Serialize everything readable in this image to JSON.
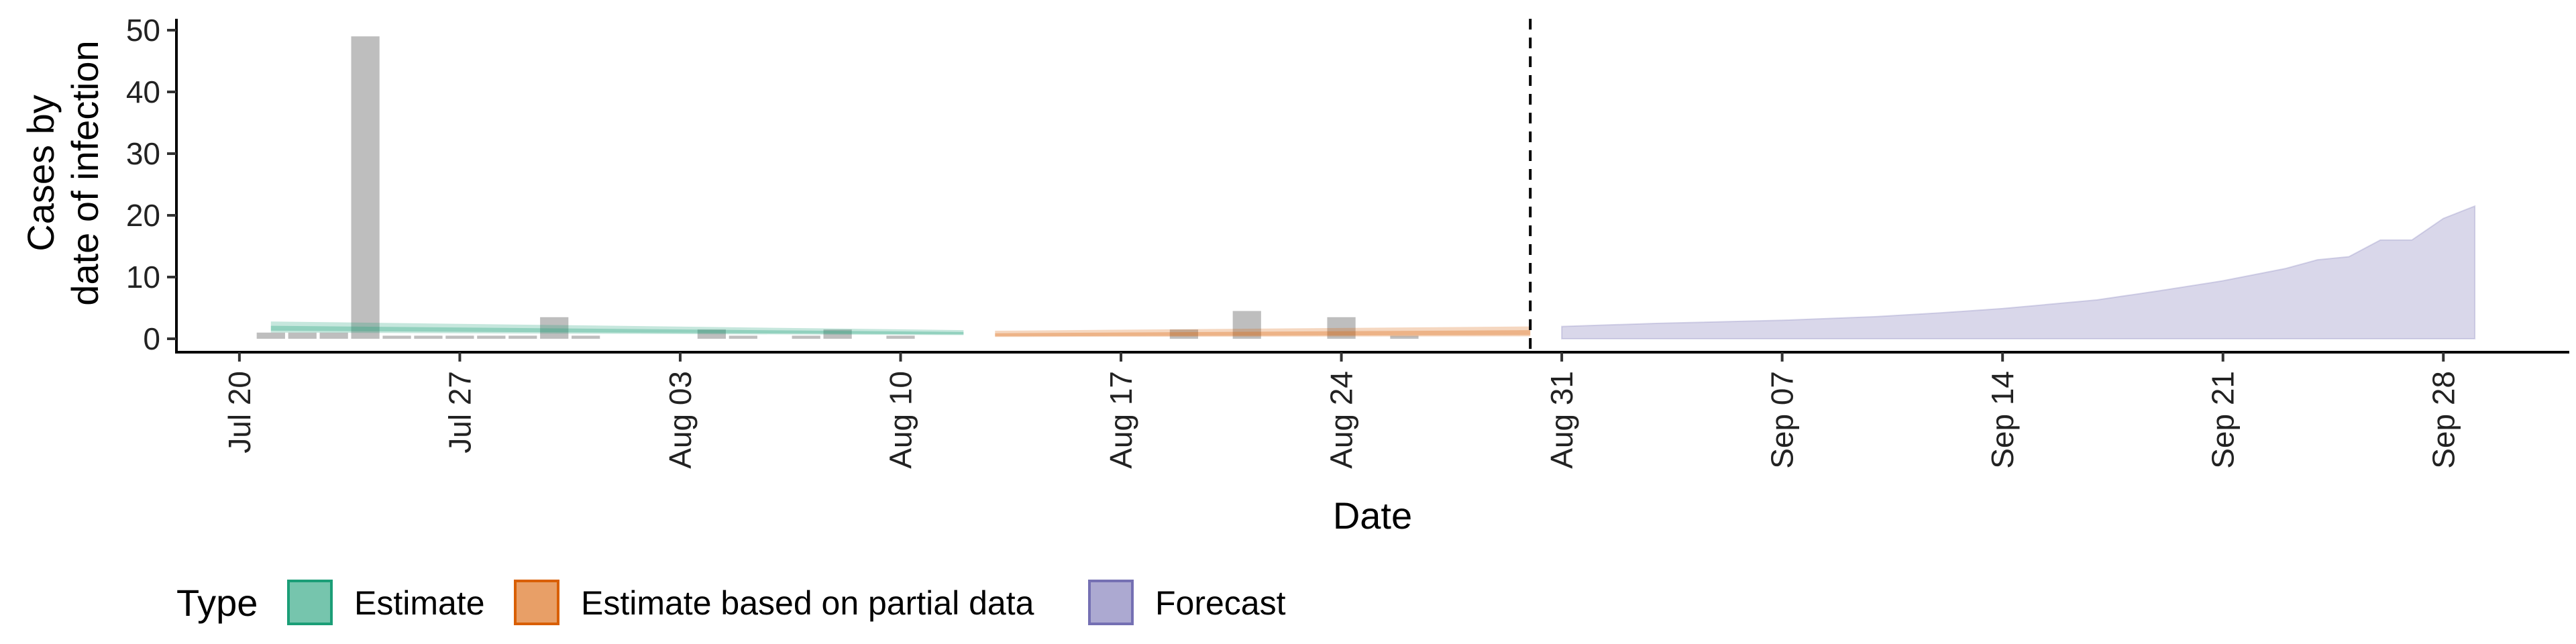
{
  "chart_data": {
    "type": "bar",
    "title": "",
    "xlabel": "Date",
    "ylabel": [
      "Cases by",
      "date of infection"
    ],
    "ylim": [
      0,
      50
    ],
    "yticks": [
      0,
      10,
      20,
      30,
      40,
      50
    ],
    "xlim": [
      "2020-07-18",
      "2020-10-02"
    ],
    "xticks": [
      {
        "date": "2020-07-20",
        "label": "Jul 20"
      },
      {
        "date": "2020-07-27",
        "label": "Jul 27"
      },
      {
        "date": "2020-08-03",
        "label": "Aug 03"
      },
      {
        "date": "2020-08-10",
        "label": "Aug 10"
      },
      {
        "date": "2020-08-17",
        "label": "Aug 17"
      },
      {
        "date": "2020-08-24",
        "label": "Aug 24"
      },
      {
        "date": "2020-08-31",
        "label": "Aug 31"
      },
      {
        "date": "2020-09-07",
        "label": "Sep 07"
      },
      {
        "date": "2020-09-14",
        "label": "Sep 14"
      },
      {
        "date": "2020-09-21",
        "label": "Sep 21"
      },
      {
        "date": "2020-09-28",
        "label": "Sep 28"
      }
    ],
    "forecast_start_line": "2020-08-30",
    "observed_cases": [
      {
        "date": "2020-07-21",
        "value": 1
      },
      {
        "date": "2020-07-22",
        "value": 1
      },
      {
        "date": "2020-07-23",
        "value": 1
      },
      {
        "date": "2020-07-24",
        "value": 49
      },
      {
        "date": "2020-07-25",
        "value": 0.5
      },
      {
        "date": "2020-07-26",
        "value": 0.5
      },
      {
        "date": "2020-07-27",
        "value": 0.5
      },
      {
        "date": "2020-07-28",
        "value": 0.5
      },
      {
        "date": "2020-07-29",
        "value": 0.5
      },
      {
        "date": "2020-07-30",
        "value": 3.5
      },
      {
        "date": "2020-07-31",
        "value": 0.5
      },
      {
        "date": "2020-08-04",
        "value": 1.5
      },
      {
        "date": "2020-08-05",
        "value": 0.5
      },
      {
        "date": "2020-08-07",
        "value": 0.5
      },
      {
        "date": "2020-08-08",
        "value": 1.5
      },
      {
        "date": "2020-08-10",
        "value": 0.5
      },
      {
        "date": "2020-08-19",
        "value": 1.5
      },
      {
        "date": "2020-08-21",
        "value": 4.5
      },
      {
        "date": "2020-08-24",
        "value": 3.5
      },
      {
        "date": "2020-08-26",
        "value": 0.5
      }
    ],
    "series": [
      {
        "name": "Estimate",
        "color": "#1B9E77",
        "x_range": [
          "2020-07-21",
          "2020-08-12"
        ],
        "lower": [
          1.0,
          0.6
        ],
        "upper": [
          2.8,
          1.4
        ],
        "inner_lower": [
          1.3,
          0.7
        ],
        "inner_upper": [
          2.1,
          1.1
        ]
      },
      {
        "name": "Estimate based on partial data",
        "color": "#D95F02",
        "x_range": [
          "2020-08-13",
          "2020-08-30"
        ],
        "lower": [
          0.3,
          0.4
        ],
        "upper": [
          1.3,
          2.0
        ],
        "inner_lower": [
          0.4,
          0.6
        ],
        "inner_upper": [
          0.9,
          1.4
        ]
      },
      {
        "name": "Forecast",
        "color": "#7570B3",
        "x": [
          "2020-08-31",
          "2020-09-03",
          "2020-09-07",
          "2020-09-10",
          "2020-09-12",
          "2020-09-14",
          "2020-09-17",
          "2020-09-19",
          "2020-09-21",
          "2020-09-23",
          "2020-09-24",
          "2020-09-25",
          "2020-09-26",
          "2020-09-27",
          "2020-09-28",
          "2020-09-29"
        ],
        "lower": [
          0,
          0,
          0,
          0,
          0,
          0,
          0,
          0,
          0,
          0,
          0,
          0,
          0,
          0,
          0,
          0
        ],
        "upper": [
          2.0,
          2.5,
          3.0,
          3.6,
          4.2,
          4.9,
          6.3,
          7.8,
          9.4,
          11.4,
          12.8,
          13.3,
          16.0,
          16.0,
          19.5,
          21.5
        ]
      }
    ],
    "legend": {
      "title": "Type",
      "position": "bottom",
      "items": [
        {
          "label": "Estimate",
          "color": "#1B9E77"
        },
        {
          "label": "Estimate based on partial data",
          "color": "#D95F02"
        },
        {
          "label": "Forecast",
          "color": "#7570B3"
        }
      ]
    },
    "grid": false
  }
}
